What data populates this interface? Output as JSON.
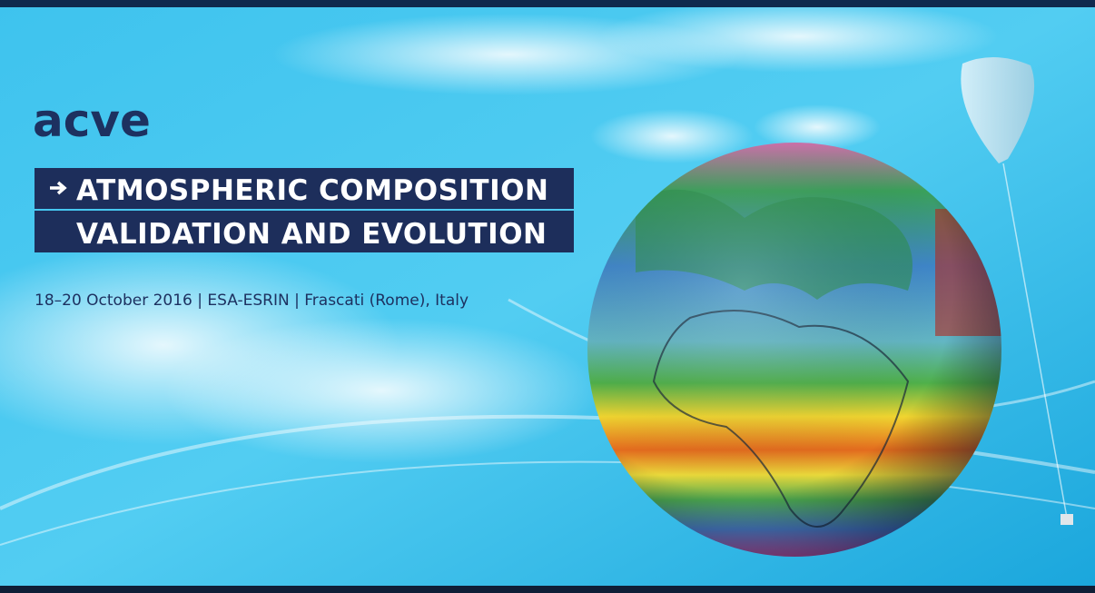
{
  "banner": {
    "brand": "acve",
    "title_line_1": "ATMOSPHERIC COMPOSITION",
    "title_line_2": "VALIDATION AND EVOLUTION",
    "details": "18–20 October 2016 | ESA-ESRIN | Frascati (Rome), Italy"
  }
}
